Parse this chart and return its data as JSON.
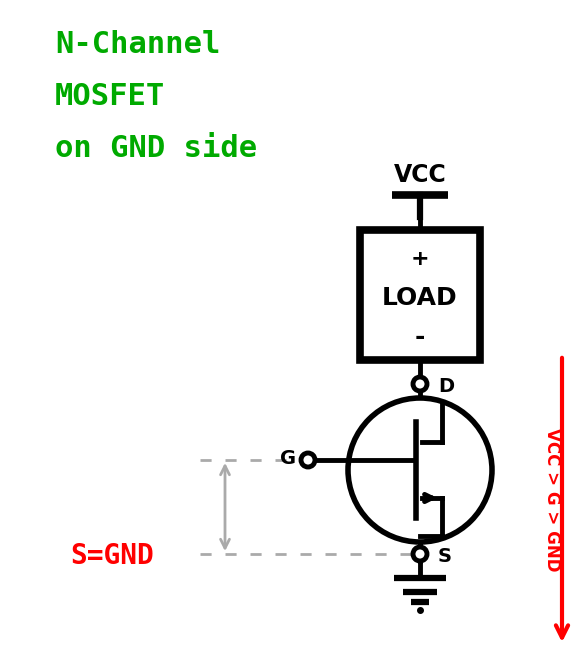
{
  "title_lines": [
    "N-Channel",
    "MOSFET",
    "on GND side"
  ],
  "title_color": "#00aa00",
  "bg_color": "#ffffff",
  "line_color": "#000000",
  "red_color": "#ff0000",
  "gray_color": "#aaaaaa",
  "vcc_label": "VCC",
  "drain_label": "D",
  "gate_label": "G",
  "source_label": "S",
  "sgnd_label": "S=GND",
  "red_text": "VCC > G > GND"
}
